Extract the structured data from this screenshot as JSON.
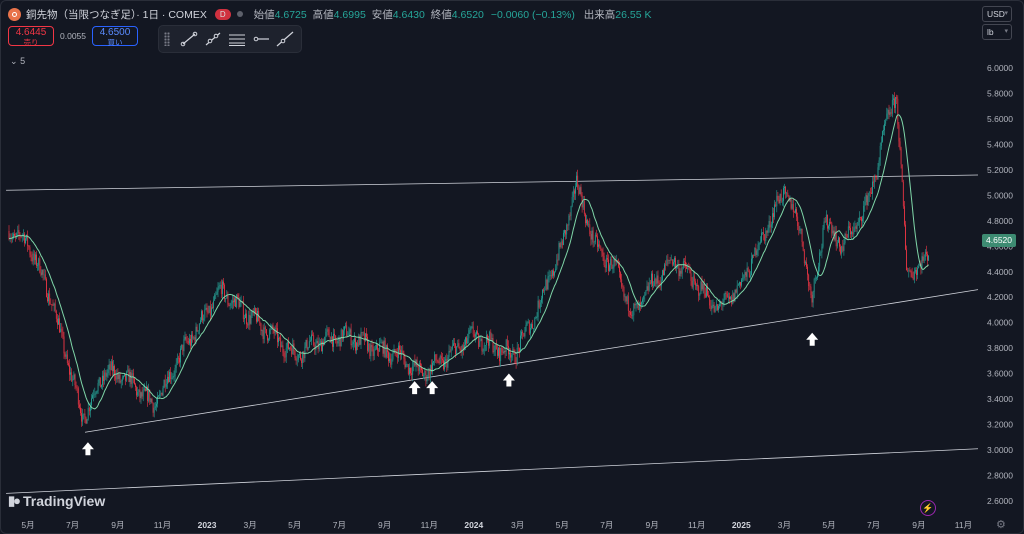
{
  "legend": {
    "title": "銅先物（当限つなぎ足）· 1日 · COMEX",
    "badge": "D",
    "open_label": "始値",
    "open": "4.6725",
    "high_label": "高値",
    "high": "4.6995",
    "low_label": "安値",
    "low": "4.6430",
    "close_label": "終値",
    "close": "4.6520",
    "change": "−0.0060 (−0.13%)",
    "volume_label": "出来高",
    "volume": "26.55 K"
  },
  "quote": {
    "sell_price": "4.6445",
    "sell_label": "売り",
    "spread": "0.0055",
    "buy_price": "4.6500",
    "buy_label": "買い"
  },
  "indicators_toggle": "5",
  "toolbar_tools": [
    "trend-line-icon",
    "ray-icon",
    "parallel-channel-icon",
    "horizontal-ray-icon",
    "extended-line-icon"
  ],
  "currency": "USD",
  "unit": "lb",
  "last_price": "4.6520",
  "logo": "TradingView",
  "colors": {
    "up": "#26a69a",
    "down": "#f23645",
    "ma": "#7fd6a8",
    "bg": "#131722",
    "text": "#d1d4dc"
  },
  "chart_data": {
    "type": "line",
    "y_ticks": [
      "6.0000",
      "5.8000",
      "5.6000",
      "5.4000",
      "5.2000",
      "5.0000",
      "4.8000",
      "4.6000",
      "4.4000",
      "4.2000",
      "4.0000",
      "3.8000",
      "3.6000",
      "3.4000",
      "3.2000",
      "3.0000",
      "2.8000",
      "2.6000"
    ],
    "x_ticks": [
      "5月",
      "7月",
      "9月",
      "11月",
      "2023",
      "3月",
      "5月",
      "7月",
      "9月",
      "11月",
      "2024",
      "3月",
      "5月",
      "7月",
      "9月",
      "11月",
      "2025",
      "3月",
      "5月",
      "7月",
      "9月",
      "11月"
    ],
    "ylim": [
      2.52,
      6.1
    ],
    "series": [
      {
        "x": [
          "2022-04-05",
          "2022-05-01",
          "2022-06-01",
          "2022-07-15",
          "2022-08-15",
          "2022-09-15",
          "2022-10-20",
          "2022-12-01",
          "2023-01-20",
          "2023-03-01",
          "2023-05-01",
          "2023-06-01",
          "2023-07-15",
          "2023-08-15",
          "2023-09-20",
          "2023-10-20",
          "2023-11-20",
          "2024-01-01",
          "2024-02-01",
          "2024-02-25",
          "2024-03-20",
          "2024-05-01",
          "2024-05-20",
          "2024-06-15",
          "2024-07-15",
          "2024-08-05",
          "2024-09-01",
          "2024-10-01",
          "2024-11-01",
          "2024-12-01",
          "2025-01-01",
          "2025-02-01",
          "2025-03-01",
          "2025-03-25",
          "2025-04-07",
          "2025-04-25",
          "2025-05-20",
          "2025-06-20",
          "2025-07-05",
          "2025-07-24",
          "2025-08-01",
          "2025-08-15",
          "2025-09-01",
          "2025-09-15"
        ],
        "values": [
          4.72,
          4.63,
          4.2,
          3.25,
          3.62,
          3.55,
          3.35,
          3.8,
          4.25,
          4.05,
          3.75,
          3.85,
          3.9,
          3.8,
          3.75,
          3.6,
          3.7,
          3.9,
          3.8,
          3.75,
          4.0,
          4.6,
          5.1,
          4.6,
          4.4,
          4.05,
          4.3,
          4.5,
          4.3,
          4.1,
          4.3,
          4.7,
          5.05,
          4.7,
          4.15,
          4.8,
          4.6,
          4.9,
          5.2,
          5.7,
          5.8,
          4.45,
          4.4,
          4.6
        ]
      }
    ],
    "trend_lines": [
      {
        "from": [
          "2022-04-01",
          5.04
        ],
        "to": [
          "2025-12-31",
          5.16
        ]
      },
      {
        "from": [
          "2022-07-18",
          3.14
        ],
        "to": [
          "2025-12-31",
          4.26
        ]
      },
      {
        "from": [
          "2022-04-01",
          2.66
        ],
        "to": [
          "2025-12-31",
          3.01
        ]
      }
    ],
    "arrows": [
      "2022-07-22",
      "2023-10-12",
      "2023-11-05",
      "2024-02-18",
      "2025-04-08"
    ]
  }
}
